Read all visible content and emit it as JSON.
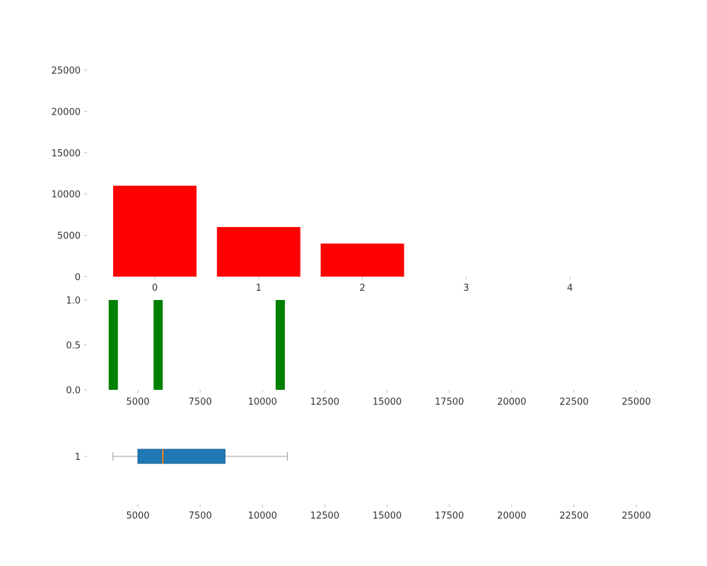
{
  "chart_data": [
    {
      "type": "bar",
      "categories": [
        "0",
        "1",
        "2",
        "3",
        "4"
      ],
      "values": [
        11000,
        6000,
        4000,
        0,
        0
      ],
      "color": "#ff0000",
      "ylim": [
        0,
        26500
      ],
      "yticks": [
        0,
        5000,
        10000,
        15000,
        20000,
        25000
      ],
      "ytick_labels": [
        "0",
        "5000",
        "10000",
        "15000",
        "20000",
        "25000"
      ],
      "title": "",
      "xlabel": "",
      "ylabel": ""
    },
    {
      "type": "bar",
      "x": [
        4000,
        5800,
        10700
      ],
      "values": [
        1,
        1,
        1
      ],
      "color": "#008000",
      "xlim": [
        3500,
        25000
      ],
      "ylim": [
        0,
        1.05
      ],
      "xticks": [
        5000,
        7500,
        10000,
        12500,
        15000,
        17500,
        20000,
        22500,
        25000
      ],
      "xtick_labels": [
        "5000",
        "7500",
        "10000",
        "12500",
        "15000",
        "17500",
        "20000",
        "22500",
        "25000"
      ],
      "yticks": [
        0,
        0.5,
        1.0
      ],
      "ytick_labels": [
        "0.0",
        "0.5",
        "1.0"
      ],
      "title": "",
      "xlabel": "",
      "ylabel": ""
    },
    {
      "type": "box",
      "orientation": "horizontal",
      "categories": [
        "1"
      ],
      "min": 4000,
      "q1": 5000,
      "median": 6000,
      "q3": 8500,
      "max": 11000,
      "box_color": "#1f77b4",
      "median_color": "#ff7f0e",
      "xlim": [
        3500,
        25000
      ],
      "xticks": [
        5000,
        7500,
        10000,
        12500,
        15000,
        17500,
        20000,
        22500,
        25000
      ],
      "xtick_labels": [
        "5000",
        "7500",
        "10000",
        "12500",
        "15000",
        "17500",
        "20000",
        "22500",
        "25000"
      ],
      "title": "",
      "xlabel": "",
      "ylabel": ""
    }
  ]
}
